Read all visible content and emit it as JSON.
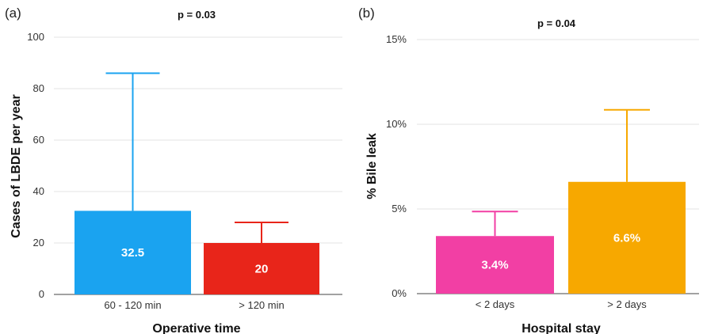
{
  "chart_data": [
    {
      "type": "bar",
      "panel": "(a)",
      "title": "p = 0.03",
      "xlabel": "Operative time",
      "ylabel": "Cases of LBDE per year",
      "ylim": [
        0,
        100
      ],
      "yticks": [
        "0",
        "20",
        "40",
        "60",
        "80",
        "100"
      ],
      "grid": true,
      "categories": [
        "60 - 120 min",
        "> 120 min"
      ],
      "values": [
        32.5,
        20
      ],
      "value_labels": [
        "32.5",
        "20"
      ],
      "error_upper": [
        86,
        28
      ],
      "colors": [
        "#1aa3f0",
        "#e8251a"
      ]
    },
    {
      "type": "bar",
      "panel": "(b)",
      "title": "p = 0.04",
      "xlabel": "Hospital stay",
      "ylabel": "% Bile leak",
      "ylim": [
        0,
        15
      ],
      "yticks": [
        "0%",
        "5%",
        "10%",
        "15%"
      ],
      "grid": true,
      "categories": [
        "< 2 days",
        "> 2 days"
      ],
      "values": [
        3.4,
        6.6
      ],
      "value_labels": [
        "3.4%",
        "6.6%"
      ],
      "error_upper": [
        4.85,
        10.85
      ],
      "colors": [
        "#f23fa4",
        "#f7a800"
      ]
    }
  ]
}
